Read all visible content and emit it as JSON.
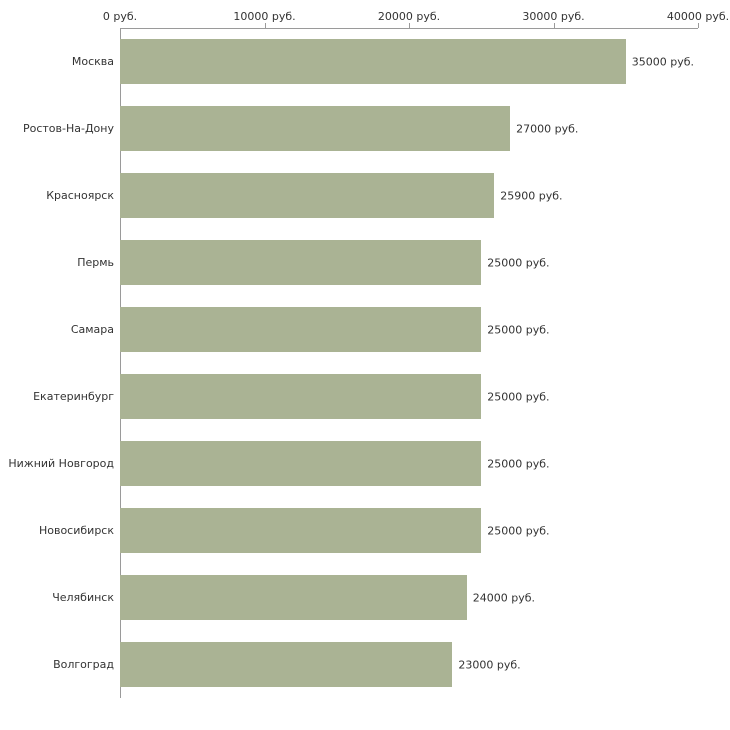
{
  "chart_data": {
    "type": "bar",
    "orientation": "horizontal",
    "title": "",
    "xlabel": "",
    "ylabel": "",
    "grid": false,
    "legend": "none",
    "xlim": [
      0,
      40000
    ],
    "x_ticks": [
      0,
      10000,
      20000,
      30000,
      40000
    ],
    "x_tick_labels": [
      "0 руб.",
      "10000 руб.",
      "20000 руб.",
      "30000 руб.",
      "40000 руб."
    ],
    "categories": [
      "Москва",
      "Ростов-На-Дону",
      "Красноярск",
      "Пермь",
      "Самара",
      "Екатеринбург",
      "Нижний Новгород",
      "Новосибирск",
      "Челябинск",
      "Волгоград"
    ],
    "values": [
      35000,
      27000,
      25900,
      25000,
      25000,
      25000,
      25000,
      25000,
      24000,
      23000
    ],
    "value_labels": [
      "35000 руб.",
      "27000 руб.",
      "25900 руб.",
      "25000 руб.",
      "25000 руб.",
      "25000 руб.",
      "25000 руб.",
      "25000 руб.",
      "24000 руб.",
      "23000 руб."
    ],
    "colors": {
      "bar": "#aab394",
      "axis": "#9a9a9a",
      "text": "#333333",
      "background": "#ffffff"
    }
  }
}
